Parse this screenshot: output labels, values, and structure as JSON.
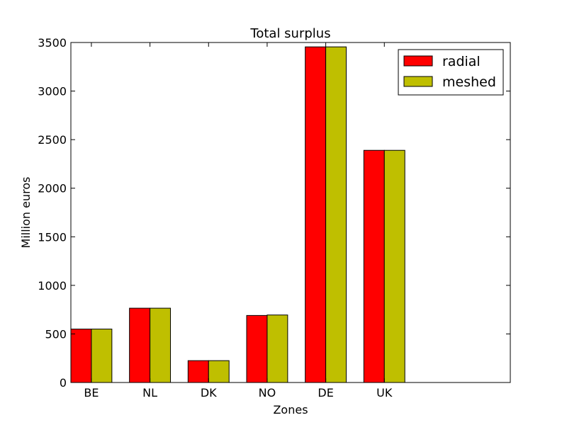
{
  "chart_data": {
    "type": "bar",
    "title": "Total surplus",
    "xlabel": "Zones",
    "ylabel": "Million euros",
    "categories": [
      "BE",
      "NL",
      "DK",
      "NO",
      "DE",
      "UK"
    ],
    "series": [
      {
        "name": "radial",
        "color": "#ff0000",
        "values": [
          550,
          765,
          225,
          690,
          3455,
          2390
        ]
      },
      {
        "name": "meshed",
        "color": "#bfbf00",
        "values": [
          550,
          765,
          225,
          695,
          3455,
          2390
        ]
      }
    ],
    "ylim": [
      0,
      3500
    ],
    "yticks": [
      0,
      500,
      1000,
      1500,
      2000,
      2500,
      3000,
      3500
    ],
    "xlim": [
      0,
      7.5
    ],
    "grid": false,
    "legend_position": "top-right"
  }
}
